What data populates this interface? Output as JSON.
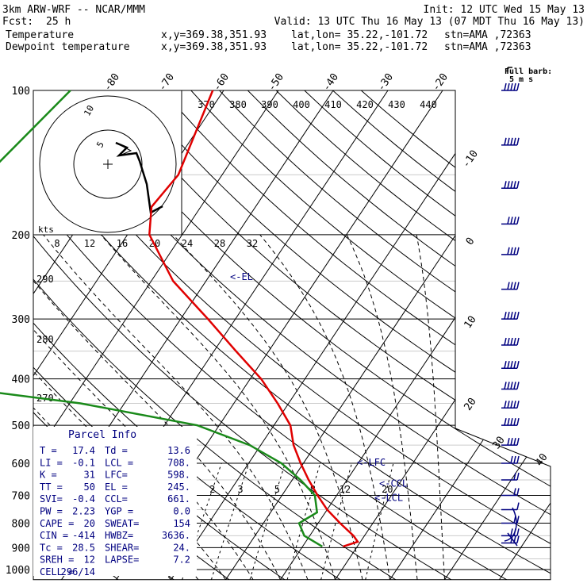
{
  "header": {
    "model": "3km ARW-WRF -- NCAR/MMM",
    "init": "Init: 12 UTC Wed 15 May 13",
    "fcst_label": "Fcst:",
    "fcst_value": "25 h",
    "valid": "Valid: 13 UTC Thu 16 May 13 (07 MDT Thu 16 May 13)"
  },
  "legend": [
    {
      "name": "Temperature",
      "color": "#e00000",
      "xy": "x,y=369.38,351.93",
      "latlon": "lat,lon= 35.22,-101.72",
      "stn": "stn=AMA ,72363"
    },
    {
      "name": "Dewpoint temperature",
      "color": "#009000",
      "xy": "x,y=369.38,351.93",
      "latlon": "lat,lon= 35.22,-101.72",
      "stn": "stn=AMA ,72363"
    }
  ],
  "colors": {
    "temperature": "#e00000",
    "dewpoint": "#1a8a1a",
    "hodograph": "#000000",
    "barbs": "#000080",
    "annotation": "#000080",
    "grid": "#000000"
  },
  "chart_data": {
    "type": "line",
    "title": "",
    "pressure_levels": [
      "100",
      "200",
      "300",
      "400",
      "500",
      "600",
      "700",
      "800",
      "900",
      "1000"
    ],
    "isotherm_labels": [
      "-80",
      "-70",
      "-60",
      "-50",
      "-40",
      "-30",
      "-20",
      "-10",
      "0",
      "10",
      "20",
      "30",
      "40"
    ],
    "theta_labels": [
      "370",
      "380",
      "390",
      "400",
      "410",
      "420",
      "430",
      "440"
    ],
    "theta_labels_left": [
      "290",
      "280",
      "270"
    ],
    "mixing_ratio_labels": [
      "2",
      "3",
      "5",
      "8",
      "12",
      "20"
    ],
    "hodo_speed_labels": [
      "8",
      "12",
      "16",
      "20",
      "24",
      "28",
      "32"
    ],
    "hodo_ring_labels": [
      "5",
      "10"
    ],
    "hodo_units": "kts",
    "barb_key": {
      "title": "Full barb:",
      "value": "5 m s"
    },
    "level_markers": [
      {
        "label": "<-EL",
        "p": 245
      },
      {
        "label": "<-LFC",
        "p": 598
      },
      {
        "label": "<-CCL",
        "p": 661
      },
      {
        "label": "<-LCL",
        "p": 708
      }
    ],
    "series": [
      {
        "name": "Temperature",
        "points": [
          {
            "p": 100,
            "t": -62
          },
          {
            "p": 150,
            "t": -58
          },
          {
            "p": 175,
            "t": -59
          },
          {
            "p": 200,
            "t": -56
          },
          {
            "p": 250,
            "t": -46
          },
          {
            "p": 300,
            "t": -35
          },
          {
            "p": 350,
            "t": -26
          },
          {
            "p": 400,
            "t": -18
          },
          {
            "p": 450,
            "t": -12
          },
          {
            "p": 500,
            "t": -7
          },
          {
            "p": 550,
            "t": -4
          },
          {
            "p": 600,
            "t": -0.5
          },
          {
            "p": 650,
            "t": 3
          },
          {
            "p": 700,
            "t": 6.5
          },
          {
            "p": 750,
            "t": 10
          },
          {
            "p": 800,
            "t": 14
          },
          {
            "p": 850,
            "t": 18
          },
          {
            "p": 875,
            "t": 19.5
          },
          {
            "p": 895,
            "t": 17.4
          }
        ]
      },
      {
        "name": "Dewpoint temperature",
        "points": [
          {
            "p": 100,
            "t": -88
          },
          {
            "p": 150,
            "t": -93
          },
          {
            "p": 175,
            "t": -97
          },
          {
            "p": 200,
            "t": -97
          },
          {
            "p": 250,
            "t": -92
          },
          {
            "p": 300,
            "t": -82
          },
          {
            "p": 350,
            "t": -72
          },
          {
            "p": 410,
            "t": -78
          },
          {
            "p": 450,
            "t": -48
          },
          {
            "p": 500,
            "t": -24
          },
          {
            "p": 550,
            "t": -12
          },
          {
            "p": 600,
            "t": -4
          },
          {
            "p": 650,
            "t": 1.5
          },
          {
            "p": 700,
            "t": 6
          },
          {
            "p": 760,
            "t": 8.5
          },
          {
            "p": 800,
            "t": 6.5
          },
          {
            "p": 850,
            "t": 9
          },
          {
            "p": 895,
            "t": 13.6
          }
        ]
      }
    ],
    "hodograph": [
      {
        "u": 1.5,
        "v": 5
      },
      {
        "u": 6,
        "v": 3
      },
      {
        "u": 4,
        "v": -1
      },
      {
        "u": 10,
        "v": -2
      },
      {
        "u": 8,
        "v": -5
      },
      {
        "u": 9,
        "v": -12
      },
      {
        "u": 12,
        "v": -13
      },
      {
        "u": 13,
        "v": -16
      }
    ],
    "wind_barbs": [
      {
        "p": 100,
        "spd": 25
      },
      {
        "p": 130,
        "spd": 25
      },
      {
        "p": 160,
        "spd": 25
      },
      {
        "p": 190,
        "spd": 20
      },
      {
        "p": 220,
        "spd": 20
      },
      {
        "p": 260,
        "spd": 20
      },
      {
        "p": 300,
        "spd": 25
      },
      {
        "p": 340,
        "spd": 25
      },
      {
        "p": 380,
        "spd": 25
      },
      {
        "p": 420,
        "spd": 25
      },
      {
        "p": 460,
        "spd": 25
      },
      {
        "p": 500,
        "spd": 25
      },
      {
        "p": 550,
        "spd": 20
      },
      {
        "p": 600,
        "spd": 15
      },
      {
        "p": 650,
        "spd": 10
      },
      {
        "p": 700,
        "spd": 10
      },
      {
        "p": 750,
        "spd": 5
      },
      {
        "p": 800,
        "spd": 10
      },
      {
        "p": 850,
        "spd": 15
      },
      {
        "p": 880,
        "spd": 15
      }
    ]
  },
  "parcel_info": {
    "title": "Parcel Info",
    "rows": [
      [
        "T  =",
        "17.4",
        "Td =",
        "13.6"
      ],
      [
        "LI =",
        "-0.1",
        "LCL =",
        "708."
      ],
      [
        "K  =",
        "31",
        "LFC=",
        "598."
      ],
      [
        "TT =",
        "50",
        "EL =",
        "245."
      ],
      [
        "SVI=",
        "-0.4",
        "CCL=",
        "661."
      ],
      [
        "PW =",
        "2.23",
        "YGP =",
        "0.0"
      ],
      [
        "CAPE =",
        "20",
        "SWEAT=",
        "154"
      ],
      [
        "CIN =",
        "-414",
        "HWBZ=",
        "3636."
      ],
      [
        "Tc =",
        "28.5",
        "SHEAR=",
        "24."
      ],
      [
        "SREH =",
        "12",
        "LAPSE=",
        "7.2"
      ],
      [
        "CELL =",
        "296/14",
        "",
        ""
      ]
    ]
  }
}
